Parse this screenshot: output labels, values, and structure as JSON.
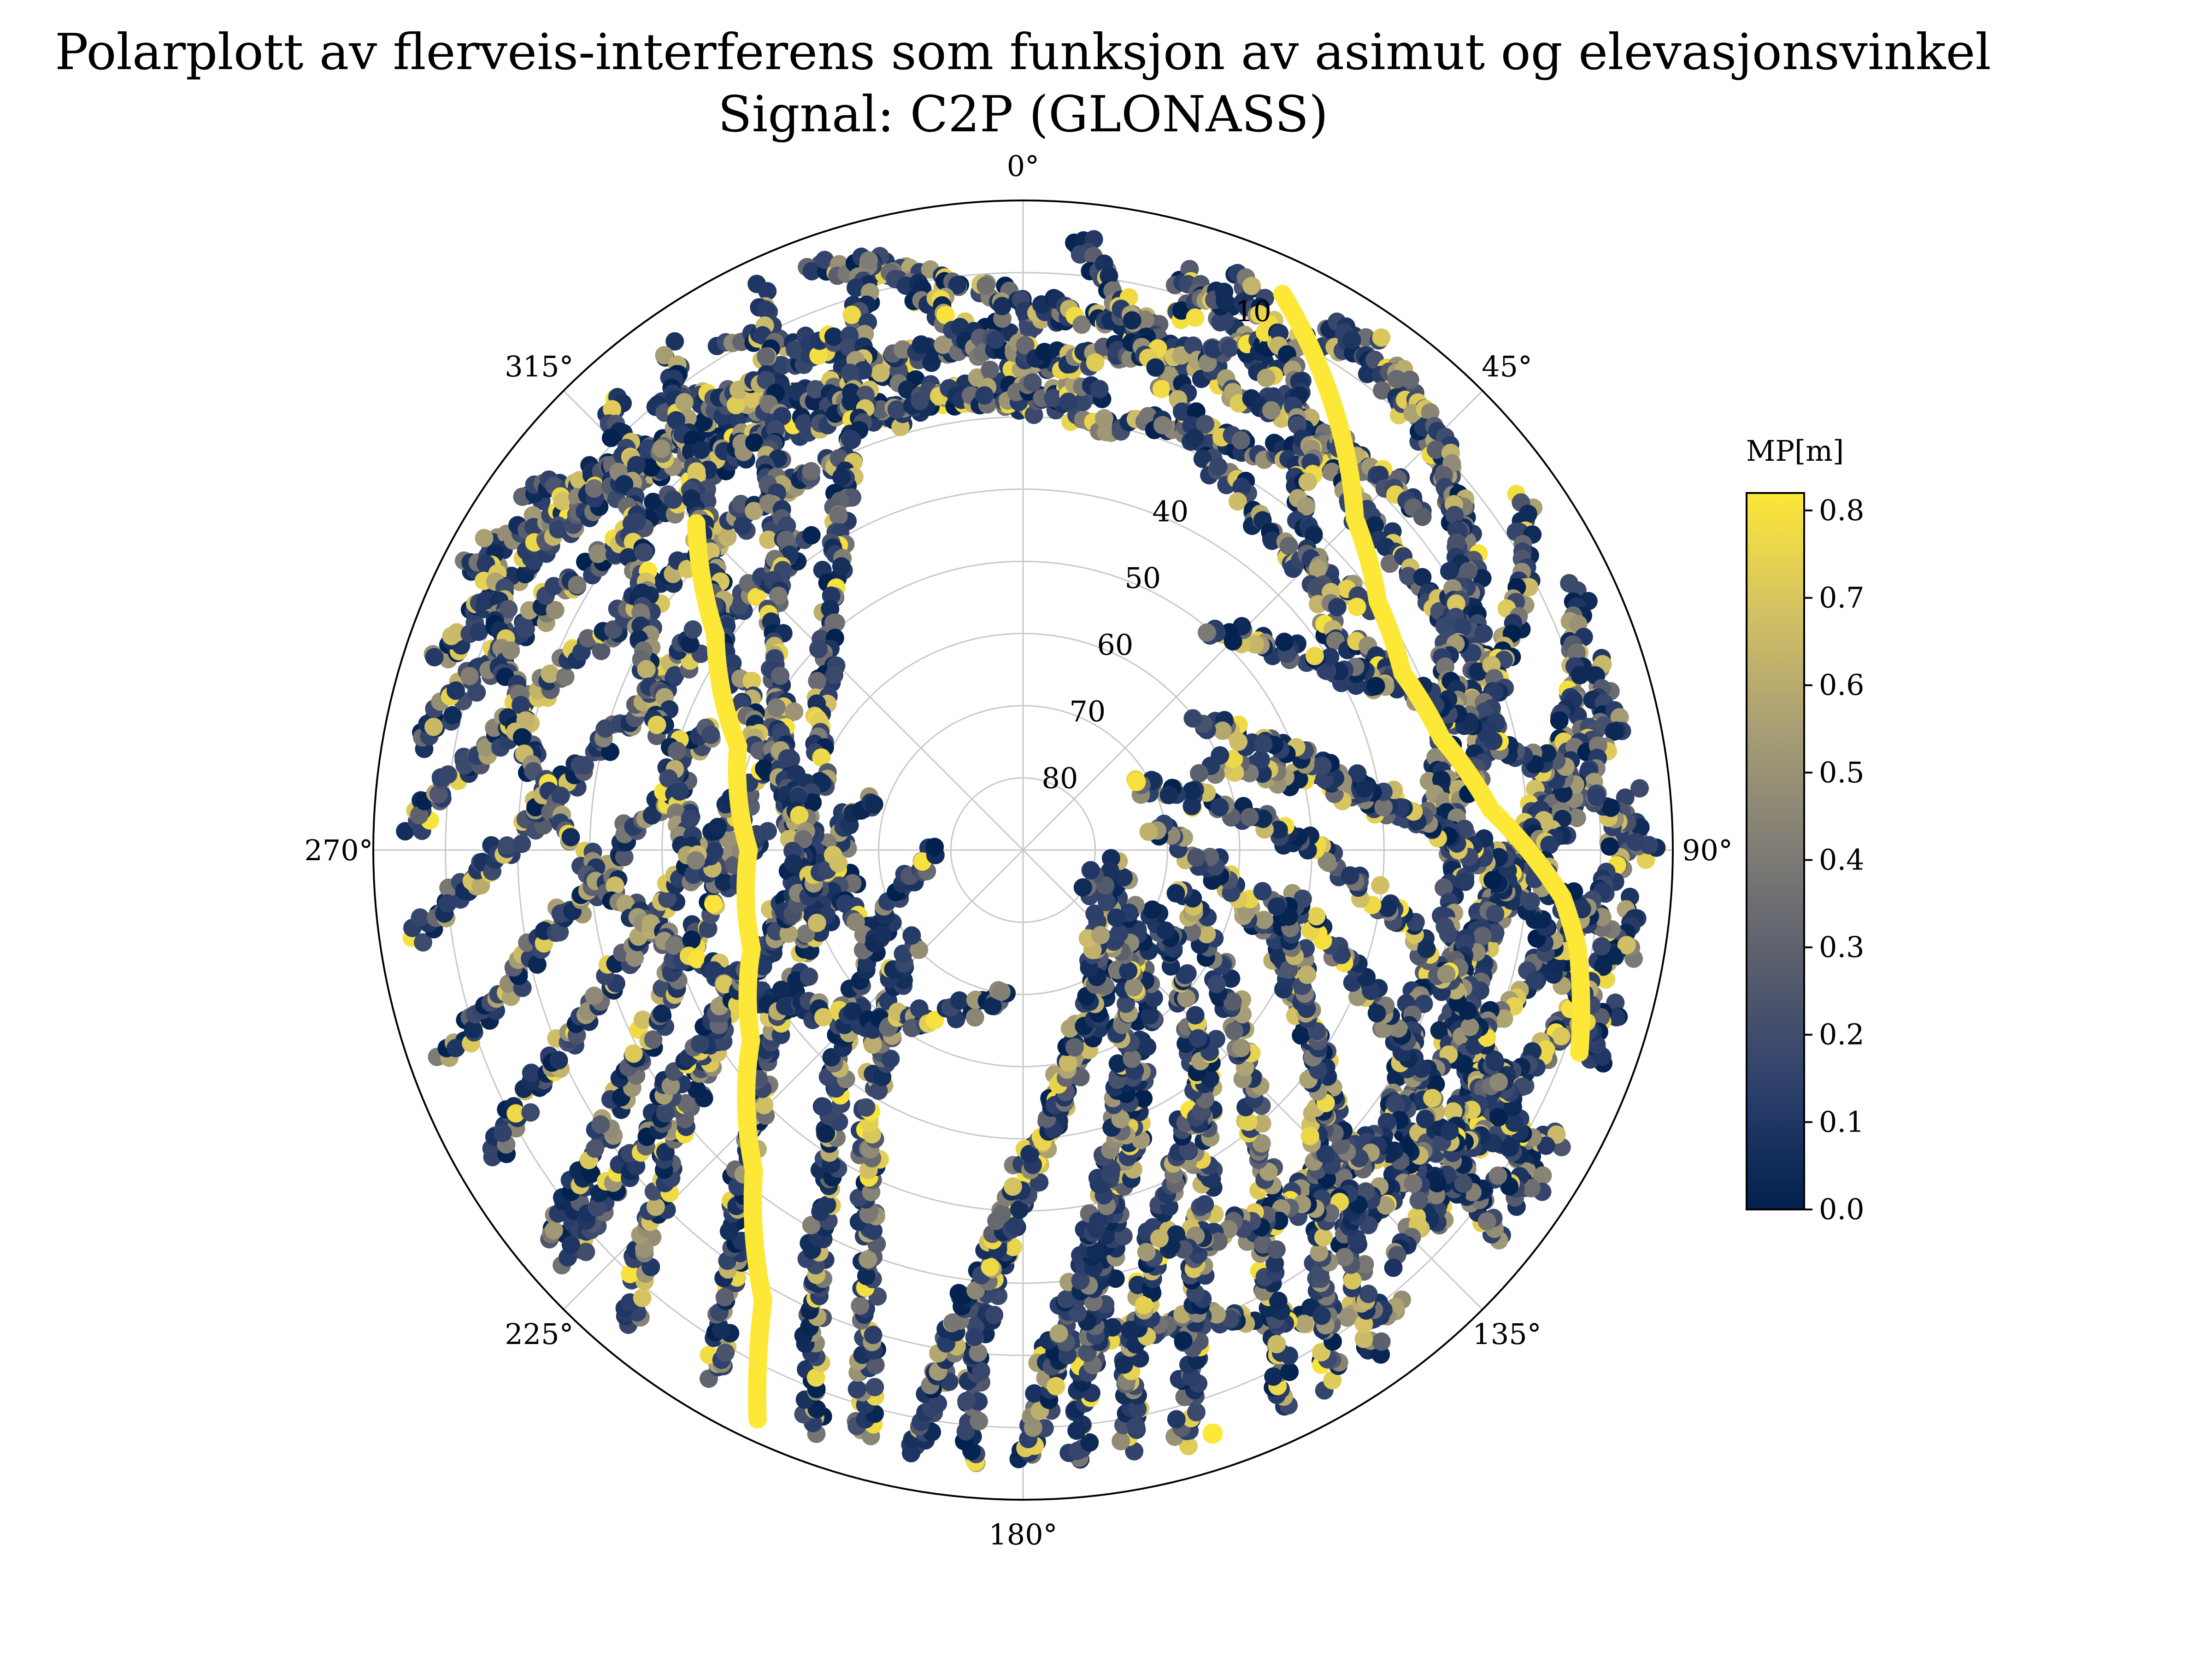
{
  "chart_data": {
    "type": "scatter",
    "projection": "polar",
    "title": "Polarplott av flerveis-interferens som funksjon av asimut og elevasjonsvinkel",
    "subtitle": "Signal: C2P (GLONASS)",
    "theta_direction": "clockwise",
    "theta_zero": "top",
    "theta_tick_values": [
      0,
      45,
      90,
      135,
      180,
      225,
      270,
      315
    ],
    "theta_tick_labels": [
      "0°",
      "45°",
      "90°",
      "135°",
      "180°",
      "225°",
      "270°",
      "315°"
    ],
    "r_axis": "elevation angle (deg), 90 at centre, 0 at rim",
    "r_tick_values": [
      10,
      40,
      50,
      60,
      70,
      80
    ],
    "r_tick_labels": [
      "10",
      "40",
      "50",
      "60",
      "70",
      "80"
    ],
    "r_tick_label_azimuth": 22.5,
    "grid_elevations": [
      10,
      20,
      30,
      40,
      50,
      60,
      70,
      80
    ],
    "grid_azimuths": [
      0,
      45,
      90,
      135,
      180,
      225,
      270,
      315
    ],
    "grid": true,
    "colorbar": {
      "label": "MP[m]",
      "min": 0.0,
      "max": 0.82,
      "ticks": [
        0.0,
        0.1,
        0.2,
        0.3,
        0.4,
        0.5,
        0.6,
        0.7,
        0.8
      ],
      "tick_labels": [
        "0.0",
        "0.1",
        "0.2",
        "0.3",
        "0.4",
        "0.5",
        "0.6",
        "0.7",
        "0.8"
      ],
      "colormap": "cividis",
      "colors": [
        "#00204d",
        "#2c3f6b",
        "#575c6d",
        "#7f7c75",
        "#a69d75",
        "#d3c164",
        "#fde737"
      ]
    },
    "tracks": [
      {
        "az": [
          330,
          350,
          10,
          30,
          45
        ],
        "el": [
          8,
          26,
          30,
          26,
          17
        ]
      },
      {
        "az": [
          305,
          320,
          335,
          350,
          5
        ],
        "el": [
          6,
          16,
          20,
          20,
          16
        ]
      },
      {
        "az": [
          15,
          30,
          45,
          60,
          70
        ],
        "el": [
          7,
          18,
          24,
          24,
          20
        ]
      },
      {
        "az": [
          320,
          345,
          10,
          20
        ],
        "el": [
          10,
          28,
          20,
          8
        ]
      },
      {
        "az": [
          340,
          0,
          25,
          50
        ],
        "el": [
          4,
          14,
          20,
          18
        ]
      },
      {
        "az": [
          297,
          315,
          335,
          355,
          10
        ],
        "el": [
          4,
          16,
          25,
          27,
          26
        ]
      },
      {
        "az": [
          345,
          355,
          5,
          20,
          35
        ],
        "el": [
          5,
          20,
          22,
          17,
          5
        ]
      },
      {
        "az": [
          5,
          15,
          25,
          40,
          55
        ],
        "el": [
          5,
          20,
          30,
          35,
          32
        ]
      },
      {
        "az": [
          20,
          30,
          40,
          55,
          65
        ],
        "el": [
          5,
          14,
          30,
          38,
          32
        ]
      },
      {
        "az": [
          30,
          45,
          60,
          75
        ],
        "el": [
          5,
          10,
          18,
          25
        ]
      },
      {
        "az": [
          37,
          50,
          65,
          80,
          90
        ],
        "el": [
          5,
          12,
          25,
          32,
          30
        ]
      },
      {
        "az": [
          55,
          70,
          85,
          100,
          115
        ],
        "el": [
          5,
          20,
          30,
          30,
          25
        ]
      },
      {
        "az": [
          65,
          80,
          95,
          110,
          122
        ],
        "el": [
          5,
          15,
          25,
          25,
          18
        ]
      },
      {
        "az": [
          72,
          90,
          105,
          115,
          122
        ],
        "el": [
          5,
          20,
          28,
          22,
          8
        ]
      },
      {
        "az": [
          77,
          95,
          110,
          125,
          132
        ],
        "el": [
          5,
          22,
          32,
          28,
          12
        ]
      },
      {
        "az": [
          85,
          95,
          105,
          120,
          135
        ],
        "el": [
          5,
          10,
          18,
          26,
          28
        ]
      },
      {
        "az": [
          90,
          80,
          70,
          60,
          45,
          40
        ],
        "el": [
          3,
          18,
          30,
          40,
          48,
          50
        ]
      },
      {
        "az": [
          95,
          105,
          115,
          125,
          138
        ],
        "el": [
          5,
          10,
          14,
          16,
          14
        ]
      },
      {
        "az": [
          100,
          95,
          88,
          80,
          72,
          65
        ],
        "el": [
          5,
          15,
          30,
          45,
          55,
          62
        ]
      },
      {
        "az": [
          105,
          110,
          118,
          128,
          140
        ],
        "el": [
          5,
          12,
          18,
          22,
          20
        ]
      },
      {
        "az": [
          110,
          100,
          88,
          75,
          62,
          55
        ],
        "el": [
          5,
          16,
          32,
          46,
          56,
          60
        ]
      },
      {
        "az": [
          118,
          122,
          130,
          140,
          150
        ],
        "el": [
          5,
          15,
          25,
          30,
          28
        ]
      },
      {
        "az": [
          125,
          115,
          100,
          85,
          70,
          60
        ],
        "el": [
          5,
          18,
          38,
          55,
          68,
          72
        ]
      },
      {
        "az": [
          130,
          125,
          118,
          110,
          100
        ],
        "el": [
          5,
          18,
          30,
          42,
          52
        ]
      },
      {
        "az": [
          140,
          148,
          158,
          168,
          178
        ],
        "el": [
          8,
          14,
          20,
          22,
          20
        ]
      },
      {
        "az": [
          145,
          140,
          130,
          115,
          95,
          80
        ],
        "el": [
          5,
          20,
          35,
          50,
          64,
          72
        ]
      },
      {
        "az": [
          155,
          150,
          140,
          125,
          105
        ],
        "el": [
          5,
          22,
          40,
          56,
          68
        ]
      },
      {
        "az": [
          165,
          160,
          150,
          135,
          115
        ],
        "el": [
          5,
          22,
          40,
          58,
          70
        ]
      },
      {
        "az": [
          175,
          172,
          165,
          150,
          125,
          100
        ],
        "el": [
          5,
          22,
          40,
          58,
          72,
          78
        ]
      },
      {
        "az": [
          185,
          185,
          182,
          170,
          145,
          110
        ],
        "el": [
          5,
          22,
          40,
          58,
          72,
          80
        ]
      },
      {
        "az": [
          195,
          198,
          205,
          215,
          230
        ],
        "el": [
          5,
          22,
          40,
          56,
          70
        ]
      },
      {
        "az": [
          200,
          205,
          212,
          225,
          245,
          270
        ],
        "el": [
          5,
          22,
          40,
          56,
          70,
          78
        ]
      },
      {
        "az": [
          210,
          215,
          225,
          240,
          262
        ],
        "el": [
          5,
          20,
          38,
          54,
          66
        ]
      },
      {
        "az": [
          220,
          226,
          235,
          250,
          270,
          290
        ],
        "el": [
          5,
          20,
          36,
          52,
          64,
          68
        ]
      },
      {
        "az": [
          230,
          236,
          245,
          258,
          275
        ],
        "el": [
          5,
          20,
          34,
          46,
          54
        ]
      },
      {
        "az": [
          240,
          246,
          255,
          268,
          285,
          300
        ],
        "el": [
          5,
          20,
          34,
          46,
          52,
          52
        ]
      },
      {
        "az": [
          250,
          256,
          265,
          278,
          292
        ],
        "el": [
          5,
          18,
          30,
          40,
          44
        ]
      },
      {
        "az": [
          262,
          268,
          278,
          292,
          308,
          325
        ],
        "el": [
          5,
          16,
          26,
          34,
          38,
          38
        ]
      },
      {
        "az": [
          272,
          280,
          292,
          306,
          320,
          335
        ],
        "el": [
          5,
          14,
          22,
          28,
          30,
          30
        ]
      },
      {
        "az": [
          280,
          290,
          302,
          316,
          330
        ],
        "el": [
          5,
          12,
          18,
          22,
          22
        ]
      },
      {
        "az": [
          288,
          298,
          310,
          325,
          340
        ],
        "el": [
          5,
          10,
          14,
          16,
          15
        ]
      },
      {
        "az": [
          300,
          290,
          275,
          255,
          230,
          205,
          185
        ],
        "el": [
          5,
          14,
          25,
          40,
          55,
          65,
          70
        ]
      },
      {
        "az": [
          325,
          320,
          310,
          295,
          270,
          240
        ],
        "el": [
          5,
          20,
          35,
          50,
          62,
          66
        ]
      },
      {
        "az": [
          335,
          330,
          320,
          300,
          275,
          250
        ],
        "el": [
          5,
          22,
          38,
          52,
          60,
          60
        ]
      },
      {
        "az": [
          345,
          340,
          330,
          312,
          290,
          265
        ],
        "el": [
          5,
          24,
          40,
          54,
          60,
          58
        ]
      },
      {
        "az": [
          318,
          312,
          300,
          285,
          268
        ],
        "el": [
          5,
          18,
          30,
          40,
          45
        ]
      },
      {
        "az": [
          228,
          232,
          240,
          252,
          268
        ],
        "el": [
          5,
          22,
          40,
          55,
          64
        ]
      },
      {
        "az": [
          180,
          175,
          165,
          150,
          130
        ],
        "el": [
          5,
          25,
          45,
          62,
          74
        ]
      },
      {
        "az": [
          190,
          188,
          180,
          165,
          140
        ],
        "el": [
          5,
          25,
          45,
          62,
          75
        ]
      },
      {
        "az": [
          150,
          145,
          135,
          120,
          100
        ],
        "el": [
          5,
          18,
          32,
          45,
          55
        ]
      },
      {
        "az": [
          170,
          168,
          162,
          150,
          135
        ],
        "el": [
          5,
          18,
          32,
          45,
          54
        ]
      },
      {
        "az": [
          123,
          128,
          137,
          148,
          160
        ],
        "el": [
          5,
          15,
          24,
          30,
          32
        ]
      }
    ],
    "highlighted_tracks": [
      {
        "az": [
          205,
          210,
          220,
          235,
          250,
          270,
          290,
          305,
          315
        ],
        "el": [
          3,
          18,
          32,
          44,
          50,
          52,
          48,
          38,
          26
        ]
      },
      {
        "az": [
          25,
          35,
          45,
          55,
          65,
          75,
          85,
          95,
          100,
          110
        ],
        "el": [
          5,
          15,
          25,
          30,
          32,
          30,
          25,
          15,
          12,
          8
        ]
      }
    ],
    "isolated_points": [
      {
        "az": 162,
        "el": 5,
        "mp": 0.82
      }
    ]
  }
}
